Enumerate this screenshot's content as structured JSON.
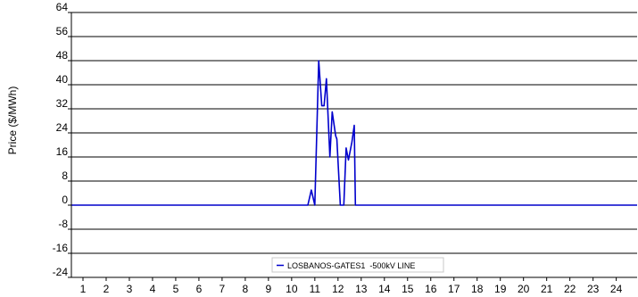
{
  "chart_data": {
    "type": "line",
    "title": "",
    "xlabel": "",
    "ylabel": "Price ($/MWh)",
    "xlim": [
      0.5,
      24.9
    ],
    "ylim": [
      -24,
      64
    ],
    "y_ticks": [
      "64",
      "56",
      "48",
      "40",
      "32",
      "24",
      "16",
      "8",
      "0",
      "-8",
      "-16",
      "-24"
    ],
    "x_ticks": [
      "1",
      "2",
      "3",
      "4",
      "5",
      "6",
      "7",
      "8",
      "9",
      "10",
      "11",
      "12",
      "13",
      "14",
      "15",
      "16",
      "17",
      "18",
      "19",
      "20",
      "21",
      "22",
      "23",
      "24"
    ],
    "grid": "horizontal",
    "legend_position": "bottom-center",
    "series": [
      {
        "name": "LOSBANOS-GATES1  -500kV LINE",
        "color": "#0000cc",
        "points": [
          [
            0.5,
            0
          ],
          [
            10.7,
            0
          ],
          [
            10.85,
            5
          ],
          [
            11.0,
            0
          ],
          [
            11.17,
            48
          ],
          [
            11.3,
            33
          ],
          [
            11.4,
            33
          ],
          [
            11.5,
            42
          ],
          [
            11.65,
            16
          ],
          [
            11.75,
            31
          ],
          [
            11.9,
            23
          ],
          [
            11.95,
            22
          ],
          [
            12.1,
            0
          ],
          [
            12.25,
            0
          ],
          [
            12.35,
            19
          ],
          [
            12.45,
            15
          ],
          [
            12.6,
            21
          ],
          [
            12.7,
            26.5
          ],
          [
            12.75,
            0
          ],
          [
            24.9,
            0
          ]
        ]
      }
    ]
  }
}
